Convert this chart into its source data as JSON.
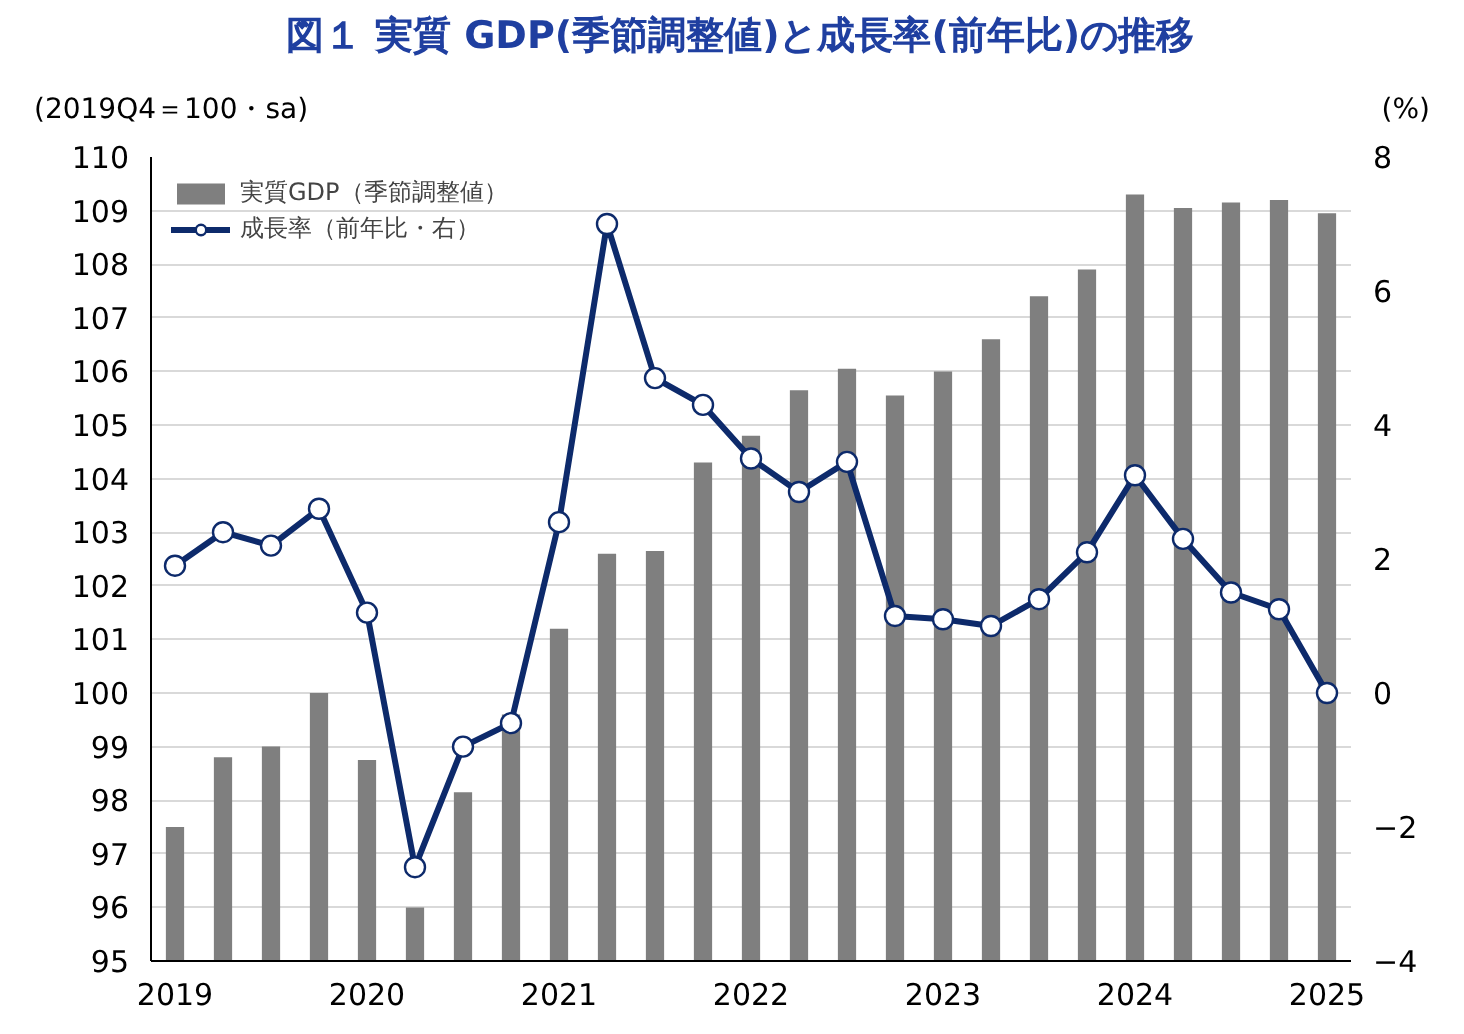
{
  "chart_data": {
    "type": "bar",
    "title": "図１ 実質 GDP(季節調整値)と成長率(前年比)の推移",
    "ylabel": "(2019Q4＝100・sa)",
    "y2label": "(%)",
    "categories": [
      "2019",
      null,
      null,
      null,
      "2020",
      null,
      null,
      null,
      "2021",
      null,
      null,
      null,
      "2022",
      null,
      null,
      null,
      "2023",
      null,
      null,
      null,
      "2024",
      null,
      null,
      null,
      "2025"
    ],
    "series": [
      {
        "name": "実質GDP（季節調整値）",
        "color": "#7f7f7f",
        "values": [
          97.5,
          98.8,
          99.0,
          100.0,
          98.75,
          96.0,
          98.15,
          99.6,
          101.2,
          102.6,
          102.65,
          104.3,
          104.8,
          105.65,
          106.05,
          105.55,
          106.0,
          106.6,
          107.4,
          107.9,
          109.3,
          109.05,
          109.15,
          109.2,
          108.95
        ]
      },
      {
        "name": "成長率（前年比・右）",
        "type": "line",
        "axis": "y2",
        "color": "#0d2a6b",
        "marker": "circle",
        "values": [
          1.9,
          2.4,
          2.2,
          2.75,
          1.2,
          -2.6,
          -0.8,
          -0.45,
          2.55,
          7.0,
          4.7,
          4.3,
          3.5,
          3.0,
          3.45,
          1.15,
          1.1,
          1.0,
          1.4,
          2.1,
          3.25,
          2.3,
          1.5,
          1.25,
          0.0
        ]
      }
    ],
    "ylim": [
      95,
      110
    ],
    "yticks": [
      95,
      96,
      97,
      98,
      99,
      100,
      101,
      102,
      103,
      104,
      105,
      106,
      107,
      108,
      109,
      110
    ],
    "y2lim": [
      -4,
      8
    ],
    "y2ticks": [
      -4,
      -2,
      0,
      2,
      4,
      6,
      8
    ],
    "grid": "y",
    "legend": "top left",
    "line_style": "solid"
  }
}
